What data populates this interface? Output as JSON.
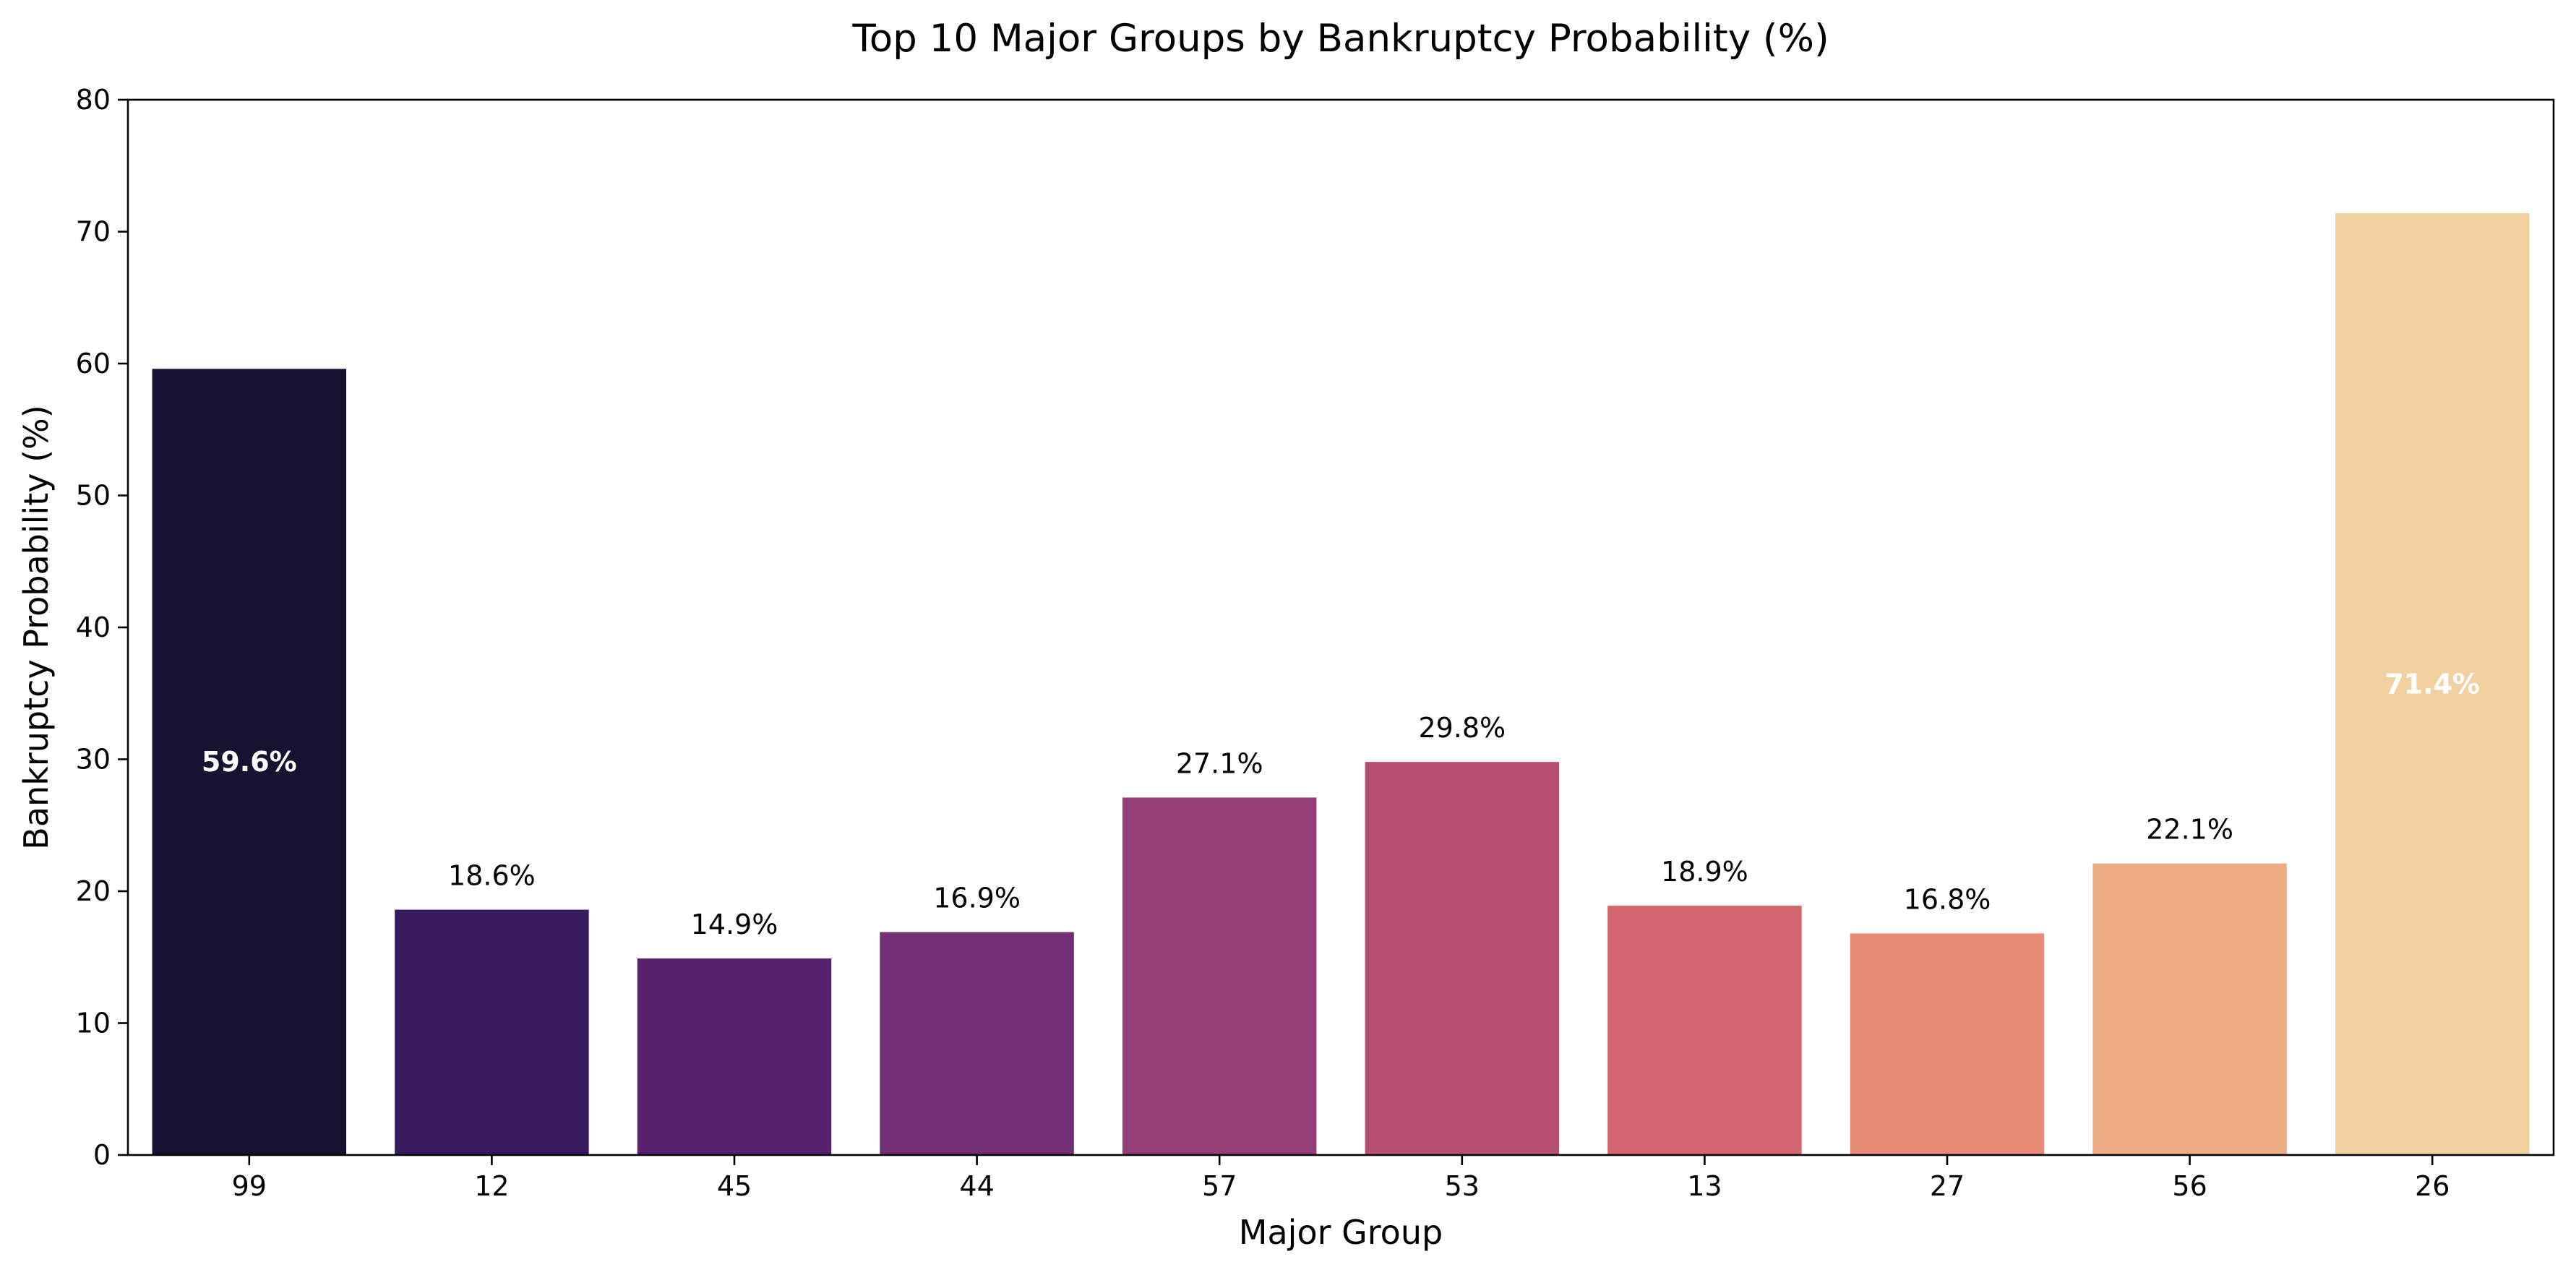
{
  "chart_data": {
    "type": "bar",
    "title": "Top 10 Major Groups by Bankruptcy Probability (%)",
    "xlabel": "Major Group",
    "ylabel": "Bankruptcy Probability (%)",
    "categories": [
      "99",
      "12",
      "45",
      "44",
      "57",
      "53",
      "13",
      "27",
      "56",
      "26"
    ],
    "values": [
      59.6,
      18.6,
      14.9,
      16.9,
      27.1,
      29.8,
      18.9,
      16.8,
      22.1,
      71.4
    ],
    "value_labels": [
      "59.6%",
      "18.6%",
      "14.9%",
      "16.9%",
      "27.1%",
      "29.8%",
      "18.9%",
      "16.8%",
      "22.1%",
      "71.4%"
    ],
    "label_inside_bar": [
      true,
      false,
      false,
      false,
      false,
      false,
      false,
      false,
      false,
      true
    ],
    "colors": [
      "#171231",
      "#381b5e",
      "#57216e",
      "#722f73",
      "#943d77",
      "#b74f73",
      "#d5666f",
      "#e68a73",
      "#edac84",
      "#f1d19f"
    ],
    "ylim": [
      0,
      80
    ],
    "yticks": [
      "0",
      "10",
      "20",
      "30",
      "40",
      "50",
      "60",
      "70",
      "80"
    ],
    "grid": false,
    "legend": "none"
  }
}
